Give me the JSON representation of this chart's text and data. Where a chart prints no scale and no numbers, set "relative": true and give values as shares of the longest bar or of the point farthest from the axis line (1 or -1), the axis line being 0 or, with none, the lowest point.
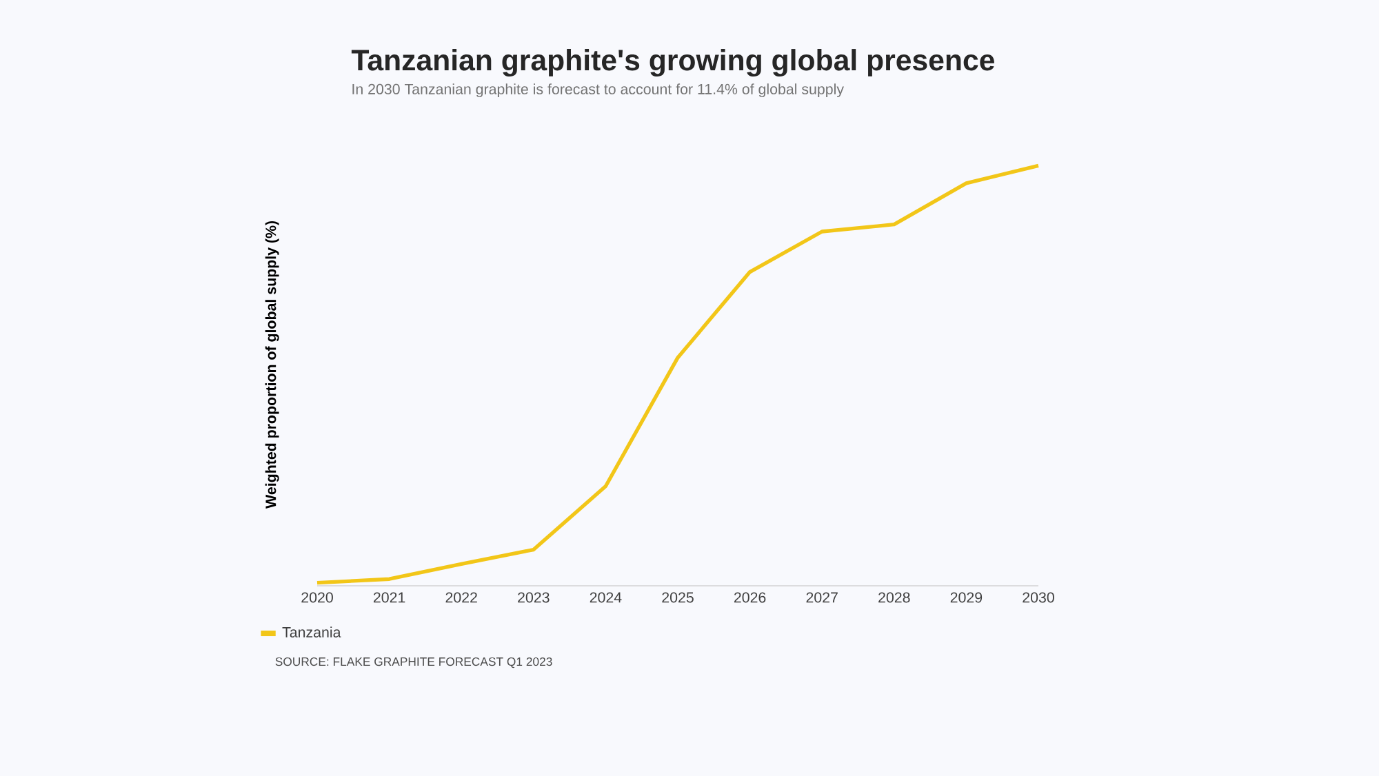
{
  "chart_data": {
    "type": "line",
    "title": "Tanzanian graphite's growing global presence",
    "subtitle": "In 2030 Tanzanian graphite is forecast to account for 11.4% of global supply",
    "ylabel": "Weighted proportion of global supply (%)",
    "annotations": [
      "SOURCE: FLAKE GRAPHITE FORECAST Q1 2023"
    ],
    "relative": true,
    "x": [
      2020,
      2021,
      2022,
      2023,
      2024,
      2025,
      2026,
      2027,
      2028,
      2029,
      2030
    ],
    "xlim": [
      2020,
      2030
    ],
    "xticks": [
      2020,
      2021,
      2022,
      2023,
      2024,
      2025,
      2026,
      2027,
      2028,
      2029,
      2030
    ],
    "series": [
      {
        "name": "Tanzania",
        "color": "#f2c618",
        "values": [
          0.007,
          0.016,
          0.052,
          0.086,
          0.237,
          0.543,
          0.747,
          0.843,
          0.86,
          0.958,
          1
        ]
      }
    ],
    "legend": "bottom left",
    "marker": "none",
    "line_style": "solid"
  }
}
